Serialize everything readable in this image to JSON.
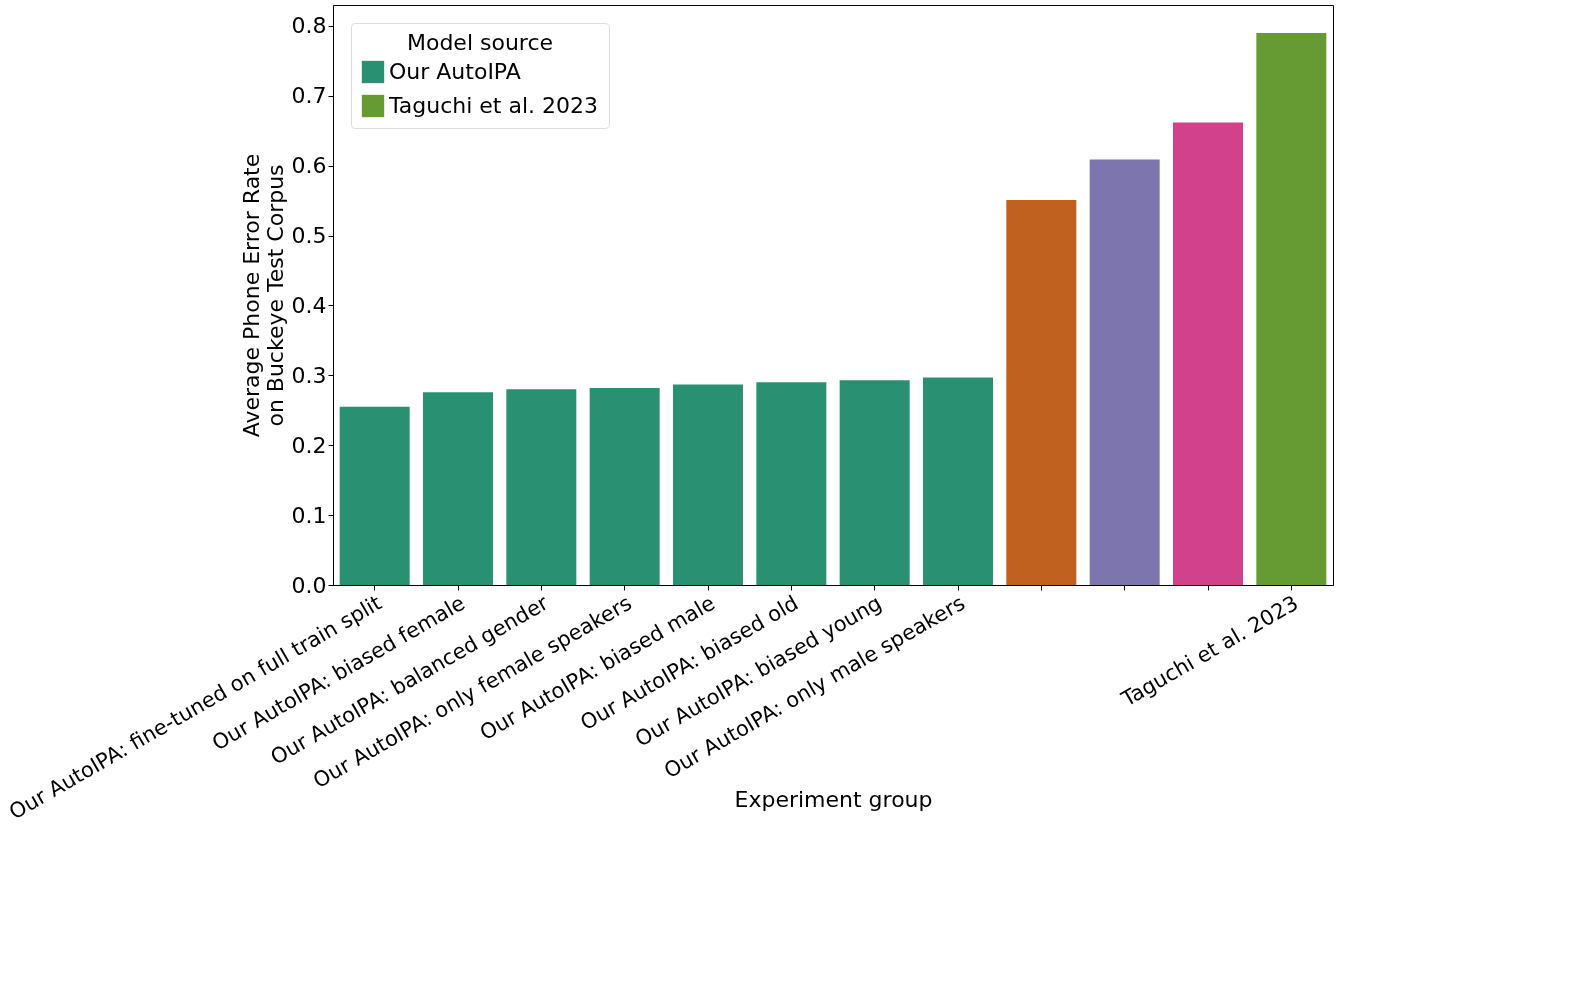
{
  "chart_data": {
    "type": "bar",
    "xlabel": "Experiment group",
    "ylabel": "Average Phone Error Rate\non Buckeye Test Corpus",
    "legend_title": "Model source",
    "legend": "top left",
    "grid": false,
    "categories": [
      "Our AutoIPA: fine-tuned on full train split",
      "Our AutoIPA: biased female",
      "Our AutoIPA: balanced gender",
      "Our AutoIPA: only female speakers",
      "Our AutoIPA: biased male",
      "Our AutoIPA: biased old",
      "Our AutoIPA: biased young",
      "Our AutoIPA: only male speakers",
      null,
      null,
      null,
      "Taguchi et al. 2023"
    ],
    "series": [
      {
        "name": "Our AutoIPA",
        "color": "#2a9072",
        "values": [
          0.255,
          0.276,
          0.28,
          0.282,
          0.287,
          0.29,
          0.293,
          0.297,
          null,
          null,
          null,
          null
        ]
      },
      {
        "color": "#c1611f",
        "values": [
          null,
          null,
          null,
          null,
          null,
          null,
          null,
          null,
          0.551,
          null,
          null,
          null
        ]
      },
      {
        "color": "#7c75ae",
        "values": [
          null,
          null,
          null,
          null,
          null,
          null,
          null,
          null,
          null,
          0.609,
          null,
          null
        ]
      },
      {
        "color": "#d2418b",
        "values": [
          null,
          null,
          null,
          null,
          null,
          null,
          null,
          null,
          null,
          null,
          0.662,
          null
        ]
      },
      {
        "name": "Taguchi et al. 2023",
        "color": "#659b32",
        "values": [
          null,
          null,
          null,
          null,
          null,
          null,
          null,
          null,
          null,
          null,
          null,
          0.79
        ]
      }
    ],
    "ylim": [
      0,
      0.83
    ],
    "yticks": [
      {
        "value": 0,
        "label": "0.0"
      },
      {
        "value": 0.1,
        "label": "0.1"
      },
      {
        "value": 0.2,
        "label": "0.2"
      },
      {
        "value": 0.3,
        "label": "0.3"
      },
      {
        "value": 0.4,
        "label": "0.4"
      },
      {
        "value": 0.5,
        "label": "0.5"
      },
      {
        "value": 0.6,
        "label": "0.6"
      },
      {
        "value": 0.7,
        "label": "0.7"
      },
      {
        "value": 0.8,
        "label": "0.8"
      }
    ]
  }
}
